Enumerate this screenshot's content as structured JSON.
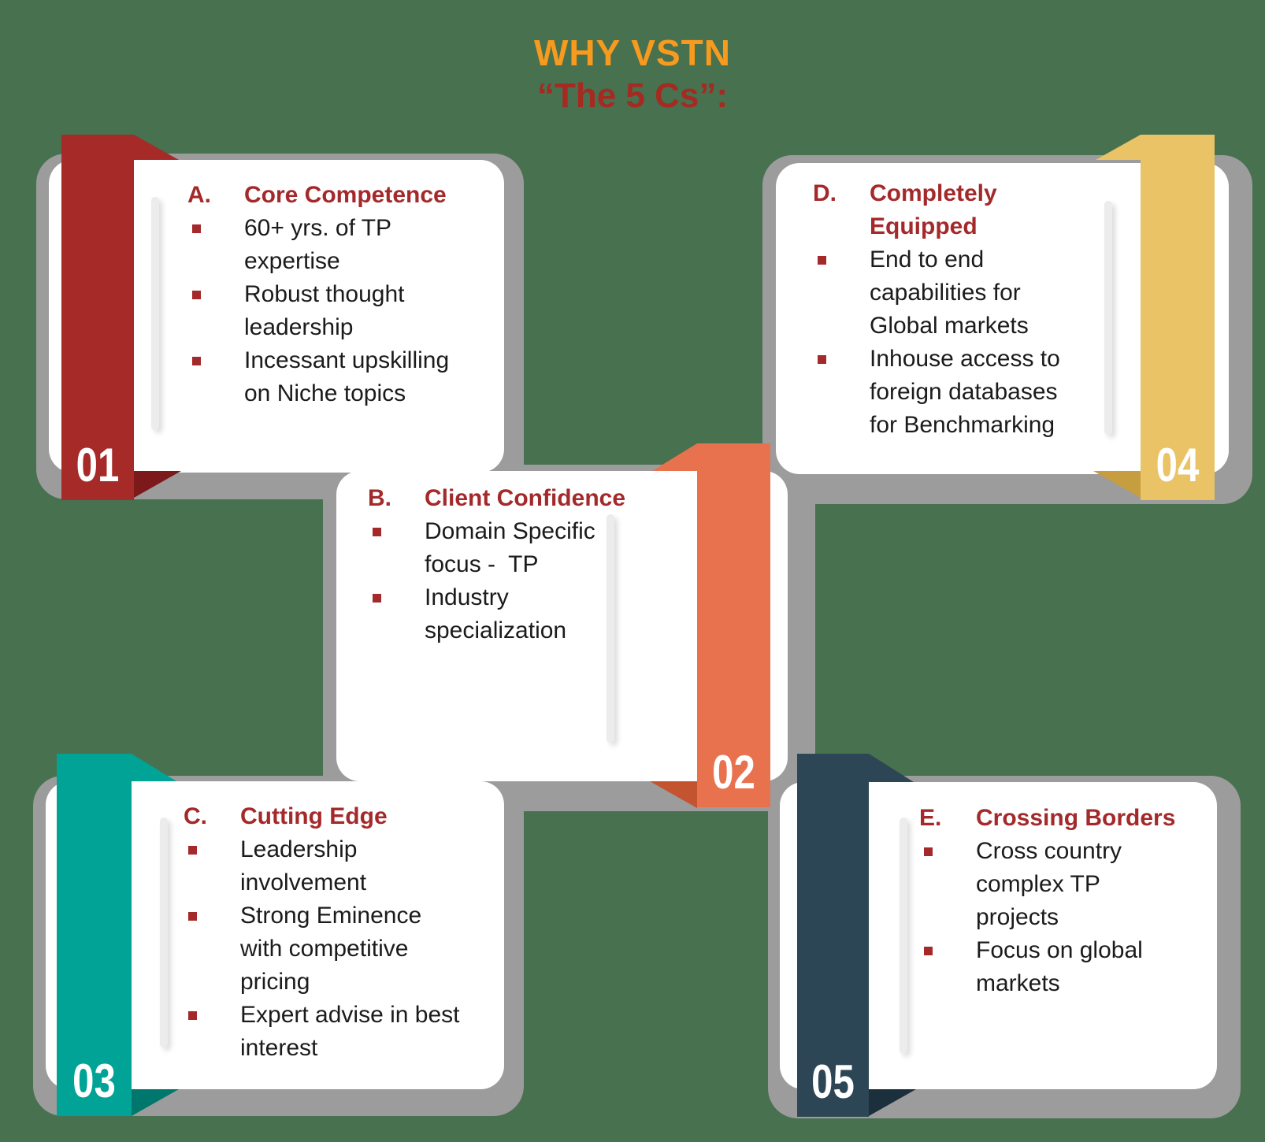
{
  "title": {
    "line1": "WHY VSTN",
    "line2": "“The 5 Cs”:"
  },
  "colors": {
    "background": "#48714F",
    "shadow": "#9C9C9C",
    "card": "#FFFFFF",
    "title_line1": "#F79A1E",
    "title_line2": "#A52A21",
    "heading": "#A4292B",
    "body_text": "#1B1B1B"
  },
  "cards": [
    {
      "number": "01",
      "letter": "A.",
      "title": "Core Competence",
      "bullets": [
        "60+ yrs. of TP expertise",
        "Robust thought leadership",
        "Incessant upskilling on Niche topics"
      ],
      "colors": {
        "ribbon": "#A62B28",
        "fold": "#7C1A1B"
      }
    },
    {
      "number": "02",
      "letter": "B.",
      "title": "Client Confidence",
      "bullets": [
        "Domain Specific focus -  TP",
        "Industry specialization"
      ],
      "colors": {
        "ribbon": "#E8724E",
        "fold": "#C4532F"
      }
    },
    {
      "number": "03",
      "letter": "C.",
      "title": "Cutting Edge",
      "bullets": [
        "Leadership involvement",
        "Strong Eminence with competitive pricing",
        "Expert advise in best interest"
      ],
      "colors": {
        "ribbon": "#00A396",
        "fold": "#00776D"
      }
    },
    {
      "number": "04",
      "letter": "D.",
      "title": "Completely Equipped",
      "bullets": [
        "End to end capabilities for Global markets",
        "Inhouse access to foreign databases for Benchmarking"
      ],
      "colors": {
        "ribbon": "#E9C365",
        "fold": "#C79E3F"
      }
    },
    {
      "number": "05",
      "letter": "E.",
      "title": "Crossing Borders",
      "bullets": [
        "Cross country complex TP projects",
        "Focus on global markets"
      ],
      "colors": {
        "ribbon": "#2C4655",
        "fold": "#1B303C"
      }
    }
  ]
}
